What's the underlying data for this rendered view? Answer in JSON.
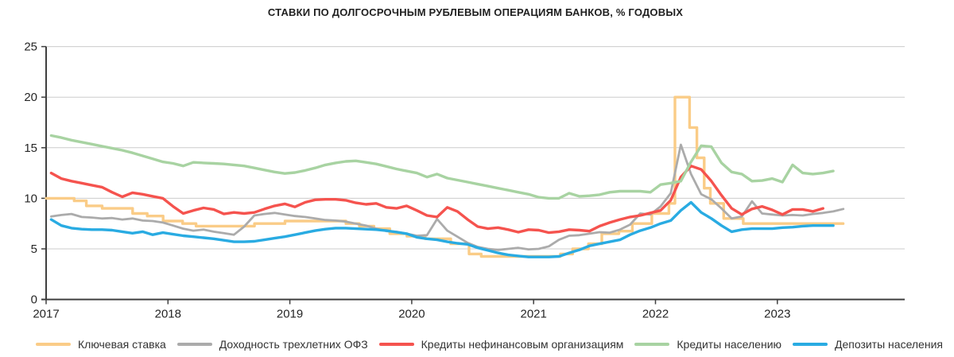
{
  "title": "СТАВКИ ПО ДОЛГОСРОЧНЫМ РУБЛЕВЫМ ОПЕРАЦИЯМ БАНКОВ, % ГОДОВЫХ",
  "chart_data": {
    "type": "line",
    "title": "СТАВКИ ПО ДОЛГОСРОЧНЫМ РУБЛЕВЫМ ОПЕРАЦИЯМ БАНКОВ, % ГОДОВЫХ",
    "grid": true,
    "legend_position": "bottom",
    "axis_color": "#3f3f3f",
    "grid_color": "#cccccc",
    "label_color": "#262626",
    "y_axis": {
      "min": 0,
      "max": 25,
      "ticks": [
        0,
        5,
        10,
        15,
        20,
        25
      ]
    },
    "x_axis": {
      "min": 2017,
      "max": 2024.05,
      "ticks": [
        2017,
        2018,
        2019,
        2020,
        2021,
        2022,
        2023
      ]
    },
    "series": [
      {
        "id": "key-rate",
        "name": "Ключевая ставка",
        "color": "#FACC87",
        "width": 3.4,
        "points": [
          [
            2017.0,
            10
          ],
          [
            2017.23,
            10
          ],
          [
            2017.23,
            9.75
          ],
          [
            2017.33,
            9.75
          ],
          [
            2017.33,
            9.25
          ],
          [
            2017.46,
            9.25
          ],
          [
            2017.46,
            9.0
          ],
          [
            2017.71,
            9.0
          ],
          [
            2017.71,
            8.5
          ],
          [
            2017.83,
            8.5
          ],
          [
            2017.83,
            8.25
          ],
          [
            2017.96,
            8.25
          ],
          [
            2017.96,
            7.75
          ],
          [
            2018.12,
            7.75
          ],
          [
            2018.12,
            7.5
          ],
          [
            2018.23,
            7.5
          ],
          [
            2018.23,
            7.25
          ],
          [
            2018.71,
            7.25
          ],
          [
            2018.71,
            7.5
          ],
          [
            2018.96,
            7.5
          ],
          [
            2018.96,
            7.75
          ],
          [
            2019.46,
            7.75
          ],
          [
            2019.46,
            7.5
          ],
          [
            2019.57,
            7.5
          ],
          [
            2019.57,
            7.25
          ],
          [
            2019.69,
            7.25
          ],
          [
            2019.69,
            7.0
          ],
          [
            2019.82,
            7.0
          ],
          [
            2019.82,
            6.5
          ],
          [
            2019.96,
            6.5
          ],
          [
            2019.96,
            6.25
          ],
          [
            2020.11,
            6.25
          ],
          [
            2020.11,
            6.0
          ],
          [
            2020.32,
            6.0
          ],
          [
            2020.32,
            5.5
          ],
          [
            2020.47,
            5.5
          ],
          [
            2020.47,
            4.5
          ],
          [
            2020.57,
            4.5
          ],
          [
            2020.57,
            4.25
          ],
          [
            2021.22,
            4.25
          ],
          [
            2021.22,
            4.5
          ],
          [
            2021.32,
            4.5
          ],
          [
            2021.32,
            5.0
          ],
          [
            2021.45,
            5.0
          ],
          [
            2021.45,
            5.5
          ],
          [
            2021.56,
            5.5
          ],
          [
            2021.56,
            6.5
          ],
          [
            2021.7,
            6.5
          ],
          [
            2021.7,
            6.75
          ],
          [
            2021.81,
            6.75
          ],
          [
            2021.81,
            7.5
          ],
          [
            2021.97,
            7.5
          ],
          [
            2021.97,
            8.5
          ],
          [
            2022.11,
            8.5
          ],
          [
            2022.11,
            9.5
          ],
          [
            2022.16,
            9.5
          ],
          [
            2022.16,
            20
          ],
          [
            2022.28,
            20
          ],
          [
            2022.28,
            17
          ],
          [
            2022.34,
            17
          ],
          [
            2022.34,
            14
          ],
          [
            2022.4,
            14
          ],
          [
            2022.4,
            11
          ],
          [
            2022.45,
            11
          ],
          [
            2022.45,
            9.5
          ],
          [
            2022.56,
            9.5
          ],
          [
            2022.56,
            8.0
          ],
          [
            2022.72,
            8.0
          ],
          [
            2022.72,
            7.5
          ],
          [
            2023.54,
            7.5
          ]
        ]
      },
      {
        "id": "ofz-yield",
        "name": "Доходность трехлетних ОФЗ",
        "color": "#ABABAB",
        "width": 2.8,
        "start": 2017,
        "monthly_values": [
          8.2,
          8.35,
          8.45,
          8.15,
          8.1,
          8.0,
          8.05,
          7.9,
          8.0,
          7.8,
          7.75,
          7.6,
          7.3,
          7.0,
          6.8,
          6.9,
          6.7,
          6.55,
          6.4,
          7.2,
          8.3,
          8.45,
          8.55,
          8.4,
          8.25,
          8.15,
          8.0,
          7.85,
          7.8,
          7.7,
          7.5,
          7.3,
          7.0,
          6.75,
          6.7,
          6.5,
          6.3,
          6.35,
          7.95,
          6.8,
          6.2,
          5.6,
          5.2,
          5.0,
          4.9,
          5.0,
          5.1,
          4.95,
          5.0,
          5.25,
          5.9,
          6.3,
          6.35,
          6.5,
          6.65,
          6.6,
          6.9,
          7.4,
          8.5,
          8.4,
          9.2,
          10.5,
          15.3,
          12.4,
          10.4,
          9.9,
          9.0,
          8.0,
          8.2,
          9.7,
          8.5,
          8.4,
          8.3,
          8.35,
          8.3,
          8.45,
          8.55,
          8.7,
          8.95
        ]
      },
      {
        "id": "corporate-loans",
        "name": "Кредиты нефинансовым организациям",
        "color": "#F5534E",
        "width": 3.4,
        "start": 2017,
        "monthly_values": [
          12.5,
          11.95,
          11.7,
          11.5,
          11.3,
          11.1,
          10.6,
          10.15,
          10.55,
          10.4,
          10.2,
          10.0,
          9.2,
          8.5,
          8.8,
          9.05,
          8.9,
          8.45,
          8.6,
          8.5,
          8.6,
          8.95,
          9.25,
          9.45,
          9.15,
          9.6,
          9.85,
          9.9,
          9.9,
          9.8,
          9.55,
          9.4,
          9.5,
          9.1,
          9.0,
          9.25,
          8.8,
          8.3,
          8.15,
          9.1,
          8.7,
          7.9,
          7.2,
          7.0,
          7.1,
          6.9,
          6.65,
          6.9,
          6.85,
          6.6,
          6.7,
          6.9,
          6.85,
          6.75,
          7.25,
          7.6,
          7.9,
          8.15,
          8.3,
          8.55,
          8.8,
          9.8,
          12.1,
          13.2,
          12.85,
          11.7,
          10.3,
          9.0,
          8.4,
          8.95,
          9.2,
          8.85,
          8.4,
          8.9,
          8.9,
          8.7,
          9.0
        ]
      },
      {
        "id": "household-loans",
        "name": "Кредиты населению",
        "color": "#A8D3A2",
        "width": 3.4,
        "start": 2017,
        "monthly_values": [
          16.2,
          16.0,
          15.75,
          15.55,
          15.35,
          15.15,
          14.95,
          14.75,
          14.5,
          14.2,
          13.9,
          13.6,
          13.45,
          13.2,
          13.55,
          13.5,
          13.45,
          13.4,
          13.3,
          13.2,
          13.0,
          12.8,
          12.6,
          12.45,
          12.55,
          12.75,
          13.0,
          13.3,
          13.5,
          13.65,
          13.7,
          13.55,
          13.4,
          13.15,
          12.9,
          12.7,
          12.5,
          12.1,
          12.4,
          12.0,
          11.8,
          11.6,
          11.4,
          11.2,
          11.0,
          10.8,
          10.6,
          10.4,
          10.1,
          10.0,
          10.0,
          10.5,
          10.2,
          10.25,
          10.35,
          10.6,
          10.7,
          10.7,
          10.7,
          10.6,
          11.35,
          11.5,
          11.7,
          13.6,
          15.2,
          15.1,
          13.5,
          12.6,
          12.4,
          11.7,
          11.75,
          11.95,
          11.6,
          13.3,
          12.5,
          12.4,
          12.5,
          12.7
        ]
      },
      {
        "id": "household-deposits",
        "name": "Депозиты населения",
        "color": "#29ABE2",
        "width": 3.4,
        "start": 2017,
        "monthly_values": [
          7.9,
          7.3,
          7.05,
          6.95,
          6.9,
          6.9,
          6.85,
          6.7,
          6.55,
          6.7,
          6.4,
          6.6,
          6.45,
          6.3,
          6.2,
          6.1,
          6.0,
          5.85,
          5.7,
          5.7,
          5.75,
          5.9,
          6.05,
          6.2,
          6.4,
          6.6,
          6.8,
          6.95,
          7.05,
          7.05,
          7.0,
          6.95,
          6.9,
          6.8,
          6.65,
          6.5,
          6.15,
          6.0,
          5.9,
          5.7,
          5.55,
          5.45,
          5.1,
          4.85,
          4.6,
          4.4,
          4.3,
          4.2,
          4.2,
          4.2,
          4.25,
          4.6,
          4.9,
          5.3,
          5.5,
          5.7,
          5.9,
          6.4,
          6.8,
          7.1,
          7.5,
          7.8,
          8.8,
          9.6,
          8.6,
          8.0,
          7.3,
          6.7,
          6.9,
          7.0,
          7.0,
          7.0,
          7.1,
          7.15,
          7.25,
          7.3,
          7.3,
          7.3
        ]
      }
    ]
  }
}
